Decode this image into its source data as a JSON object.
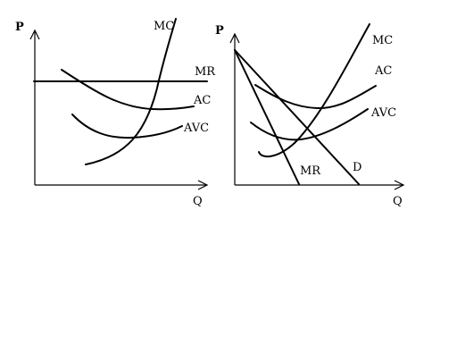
{
  "colors": {
    "background": "#ffffff",
    "ink": "#000000"
  },
  "left_panel": {
    "y_axis_label": "P",
    "x_axis_label": "Q",
    "curves": {
      "mc": "MC",
      "mr": "MR",
      "ac": "AC",
      "avc": "AVC"
    }
  },
  "right_panel": {
    "y_axis_label": "P",
    "x_axis_label": "Q",
    "curves": {
      "mc": "MC",
      "ac": "AC",
      "avc": "AVC",
      "mr": "MR",
      "d": "D"
    }
  }
}
